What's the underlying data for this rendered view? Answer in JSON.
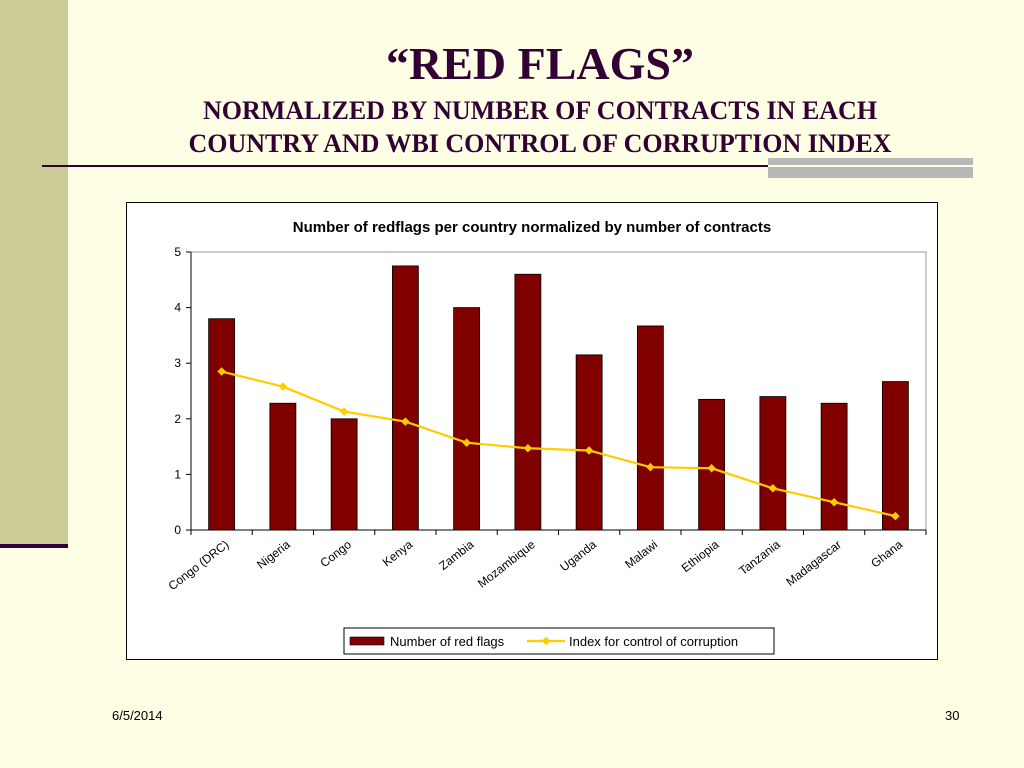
{
  "slide": {
    "title": "“RED FLAGS”",
    "subtitle_line1": "NORMALIZED BY NUMBER OF CONTRACTS IN EACH",
    "subtitle_line2": "COUNTRY AND WBI CONTROL OF CORRUPTION INDEX",
    "date": "6/5/2014",
    "page_number": "30"
  },
  "colors": {
    "bar": "#800000",
    "line": "#FFCC00",
    "title_text": "#330033"
  },
  "chart_data": {
    "type": "bar",
    "title": "Number of redflags per country normalized by number of contracts",
    "xlabel": "",
    "ylabel": "",
    "categories": [
      "Congo (DRC)",
      "Nigeria",
      "Congo",
      "Kenya",
      "Zambia",
      "Mozambique",
      "Uganda",
      "Malawi",
      "Ethiopia",
      "Tanzania",
      "Madagascar",
      "Ghana"
    ],
    "ylim": [
      0,
      5
    ],
    "yticks": [
      "0",
      "1",
      "2",
      "3",
      "4",
      "5"
    ],
    "grid": false,
    "legend_position": "bottom",
    "series": [
      {
        "name": "Number of red flags",
        "type": "bar",
        "values": [
          3.8,
          2.28,
          2.0,
          4.75,
          4.0,
          4.6,
          3.15,
          3.67,
          2.35,
          2.4,
          2.28,
          2.67
        ]
      },
      {
        "name": "Index for control of corruption",
        "type": "line",
        "values": [
          2.85,
          2.58,
          2.13,
          1.95,
          1.57,
          1.47,
          1.43,
          1.13,
          1.11,
          0.75,
          0.5,
          0.25
        ]
      }
    ]
  }
}
